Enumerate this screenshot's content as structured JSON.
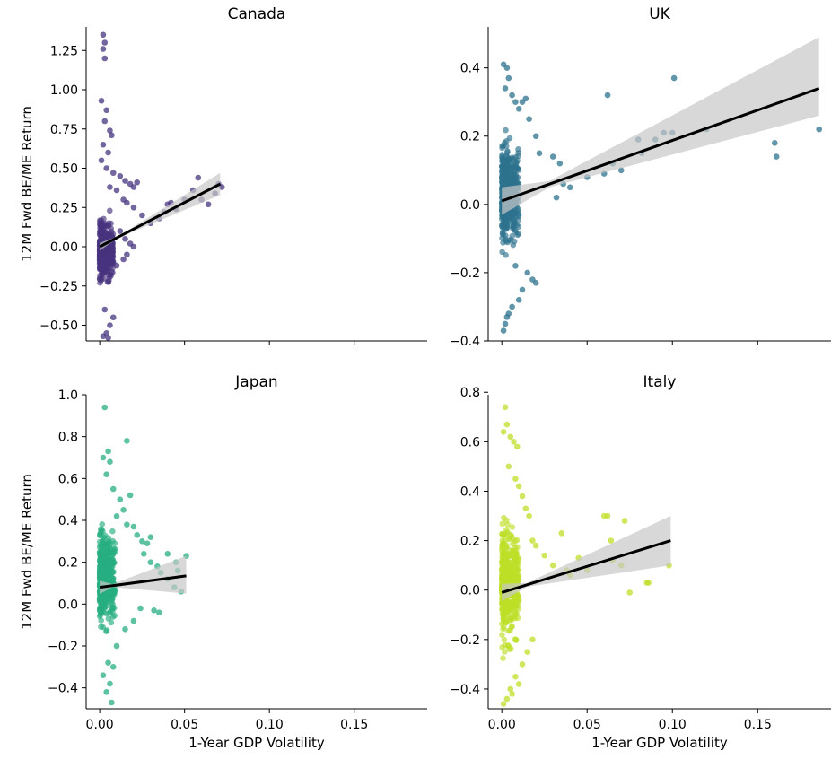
{
  "chart_data": [
    {
      "type": "scatter",
      "title": "Canada",
      "xlabel": "",
      "ylabel": "12M Fwd BE/ME Return",
      "xlim": [
        -0.008,
        0.193
      ],
      "ylim": [
        -0.6,
        1.4
      ],
      "xticks": [
        0.0,
        0.05,
        0.1,
        0.15
      ],
      "xtick_labels": [
        "",
        "",
        "",
        ""
      ],
      "yticks": [
        -0.5,
        -0.25,
        0.0,
        0.25,
        0.5,
        0.75,
        1.0,
        1.25
      ],
      "ytick_labels": [
        "−0.50",
        "−0.25",
        "0.00",
        "0.25",
        "0.50",
        "0.75",
        "1.00",
        "1.25"
      ],
      "point_color": "#46337e",
      "regression": {
        "x0": 0.0,
        "x1": 0.071,
        "y0": 0.0,
        "y1": 0.4,
        "band_end_lo": 0.33,
        "band_end_hi": 0.47
      },
      "cluster": {
        "count": 400,
        "x_max": 0.008,
        "y_center": -0.02,
        "y_spread": 0.17
      },
      "points": [
        [
          0.002,
          1.35
        ],
        [
          0.003,
          1.3
        ],
        [
          0.002,
          1.26
        ],
        [
          0.003,
          1.2
        ],
        [
          0.001,
          0.93
        ],
        [
          0.004,
          0.87
        ],
        [
          0.003,
          0.8
        ],
        [
          0.006,
          0.74
        ],
        [
          0.007,
          0.71
        ],
        [
          0.002,
          0.65
        ],
        [
          0.005,
          0.6
        ],
        [
          0.001,
          0.55
        ],
        [
          0.004,
          0.5
        ],
        [
          0.008,
          0.47
        ],
        [
          0.012,
          0.45
        ],
        [
          0.015,
          0.42
        ],
        [
          0.006,
          0.38
        ],
        [
          0.01,
          0.36
        ],
        [
          0.018,
          0.4
        ],
        [
          0.02,
          0.38
        ],
        [
          0.022,
          0.41
        ],
        [
          0.014,
          0.3
        ],
        [
          0.016,
          0.28
        ],
        [
          0.02,
          0.25
        ],
        [
          0.025,
          0.2
        ],
        [
          0.03,
          0.15
        ],
        [
          0.035,
          0.18
        ],
        [
          0.038,
          0.22
        ],
        [
          0.04,
          0.27
        ],
        [
          0.042,
          0.28
        ],
        [
          0.045,
          0.24
        ],
        [
          0.05,
          0.3
        ],
        [
          0.055,
          0.36
        ],
        [
          0.058,
          0.44
        ],
        [
          0.06,
          0.3
        ],
        [
          0.064,
          0.27
        ],
        [
          0.07,
          0.4
        ],
        [
          0.072,
          0.38
        ],
        [
          0.068,
          0.34
        ],
        [
          0.012,
          0.1
        ],
        [
          0.015,
          0.05
        ],
        [
          0.018,
          0.02
        ],
        [
          0.02,
          0.0
        ],
        [
          0.016,
          -0.05
        ],
        [
          0.014,
          -0.08
        ],
        [
          0.01,
          -0.12
        ],
        [
          0.006,
          -0.5
        ],
        [
          0.004,
          -0.55
        ],
        [
          0.002,
          -0.57
        ],
        [
          0.005,
          -0.58
        ],
        [
          0.008,
          -0.45
        ],
        [
          0.003,
          -0.4
        ]
      ]
    },
    {
      "type": "scatter",
      "title": "UK",
      "xlabel": "",
      "ylabel": "",
      "xlim": [
        -0.008,
        0.193
      ],
      "ylim": [
        -0.4,
        0.52
      ],
      "xticks": [
        0.0,
        0.05,
        0.1,
        0.15
      ],
      "xtick_labels": [
        "",
        "",
        "",
        ""
      ],
      "yticks": [
        -0.4,
        -0.2,
        0.0,
        0.2,
        0.4
      ],
      "ytick_labels": [
        "−0.4",
        "−0.2",
        "0.0",
        "0.2",
        "0.4"
      ],
      "point_color": "#2c728e",
      "regression": {
        "x0": 0.0,
        "x1": 0.186,
        "y0": 0.01,
        "y1": 0.34,
        "band_end_lo": 0.26,
        "band_end_hi": 0.49
      },
      "cluster": {
        "count": 380,
        "x_max": 0.01,
        "y_center": 0.03,
        "y_spread": 0.13
      },
      "points": [
        [
          0.001,
          0.41
        ],
        [
          0.003,
          0.4
        ],
        [
          0.004,
          0.37
        ],
        [
          0.002,
          0.34
        ],
        [
          0.006,
          0.32
        ],
        [
          0.008,
          0.3
        ],
        [
          0.01,
          0.28
        ],
        [
          0.012,
          0.3
        ],
        [
          0.014,
          0.31
        ],
        [
          0.016,
          0.25
        ],
        [
          0.02,
          0.2
        ],
        [
          0.022,
          0.15
        ],
        [
          0.03,
          0.14
        ],
        [
          0.034,
          0.12
        ],
        [
          0.036,
          0.06
        ],
        [
          0.04,
          0.05
        ],
        [
          0.032,
          0.02
        ],
        [
          0.05,
          0.08
        ],
        [
          0.06,
          0.09
        ],
        [
          0.062,
          0.32
        ],
        [
          0.065,
          0.12
        ],
        [
          0.07,
          0.1
        ],
        [
          0.08,
          0.19
        ],
        [
          0.082,
          0.15
        ],
        [
          0.09,
          0.19
        ],
        [
          0.095,
          0.21
        ],
        [
          0.1,
          0.21
        ],
        [
          0.101,
          0.37
        ],
        [
          0.12,
          0.22
        ],
        [
          0.16,
          0.18
        ],
        [
          0.161,
          0.14
        ],
        [
          0.186,
          0.22
        ],
        [
          0.015,
          -0.2
        ],
        [
          0.018,
          -0.22
        ],
        [
          0.02,
          -0.23
        ],
        [
          0.012,
          -0.25
        ],
        [
          0.01,
          -0.28
        ],
        [
          0.006,
          -0.3
        ],
        [
          0.004,
          -0.32
        ],
        [
          0.002,
          -0.35
        ],
        [
          0.001,
          -0.37
        ],
        [
          0.003,
          -0.33
        ],
        [
          0.008,
          -0.18
        ]
      ]
    },
    {
      "type": "scatter",
      "title": "Japan",
      "xlabel": "1-Year GDP Volatility",
      "ylabel": "12M Fwd BE/ME Return",
      "xlim": [
        -0.008,
        0.193
      ],
      "ylim": [
        -0.5,
        1.0
      ],
      "xticks": [
        0.0,
        0.05,
        0.1,
        0.15
      ],
      "xtick_labels": [
        "0.00",
        "0.05",
        "0.10",
        "0.15"
      ],
      "yticks": [
        -0.4,
        -0.2,
        0.0,
        0.2,
        0.4,
        0.6,
        0.8,
        1.0
      ],
      "ytick_labels": [
        "−0.4",
        "−0.2",
        "0.0",
        "0.2",
        "0.4",
        "0.6",
        "0.8",
        "1.0"
      ],
      "point_color": "#27ad81",
      "regression": {
        "x0": 0.0,
        "x1": 0.051,
        "y0": 0.08,
        "y1": 0.135,
        "band_end_lo": 0.05,
        "band_end_hi": 0.23
      },
      "cluster": {
        "count": 420,
        "x_max": 0.009,
        "y_center": 0.12,
        "y_spread": 0.2
      },
      "points": [
        [
          0.003,
          0.94
        ],
        [
          0.016,
          0.78
        ],
        [
          0.005,
          0.73
        ],
        [
          0.002,
          0.7
        ],
        [
          0.006,
          0.68
        ],
        [
          0.004,
          0.62
        ],
        [
          0.008,
          0.55
        ],
        [
          0.018,
          0.52
        ],
        [
          0.012,
          0.5
        ],
        [
          0.014,
          0.45
        ],
        [
          0.01,
          0.42
        ],
        [
          0.016,
          0.38
        ],
        [
          0.02,
          0.37
        ],
        [
          0.022,
          0.33
        ],
        [
          0.025,
          0.3
        ],
        [
          0.028,
          0.29
        ],
        [
          0.03,
          0.32
        ],
        [
          0.026,
          0.24
        ],
        [
          0.03,
          0.2
        ],
        [
          0.034,
          0.18
        ],
        [
          0.036,
          0.15
        ],
        [
          0.04,
          0.24
        ],
        [
          0.04,
          0.12
        ],
        [
          0.044,
          0.08
        ],
        [
          0.046,
          0.16
        ],
        [
          0.048,
          0.06
        ],
        [
          0.051,
          0.23
        ],
        [
          0.045,
          0.2
        ],
        [
          0.035,
          -0.04
        ],
        [
          0.032,
          -0.03
        ],
        [
          0.024,
          -0.02
        ],
        [
          0.02,
          -0.08
        ],
        [
          0.015,
          -0.12
        ],
        [
          0.01,
          -0.2
        ],
        [
          0.008,
          -0.3
        ],
        [
          0.006,
          -0.38
        ],
        [
          0.004,
          -0.42
        ],
        [
          0.007,
          -0.47
        ],
        [
          0.002,
          -0.34
        ],
        [
          0.005,
          -0.28
        ]
      ]
    },
    {
      "type": "scatter",
      "title": "Italy",
      "xlabel": "1-Year GDP Volatility",
      "ylabel": "",
      "xlim": [
        -0.008,
        0.193
      ],
      "ylim": [
        -0.48,
        0.79
      ],
      "xticks": [
        0.0,
        0.05,
        0.1,
        0.15
      ],
      "xtick_labels": [
        "0.00",
        "0.05",
        "0.10",
        "0.15"
      ],
      "yticks": [
        -0.4,
        -0.2,
        0.0,
        0.2,
        0.4,
        0.6,
        0.8
      ],
      "ytick_labels": [
        "−0.4",
        "−0.2",
        "0.0",
        "0.2",
        "0.4",
        "0.6",
        "0.8"
      ],
      "point_color": "#bddf26",
      "regression": {
        "x0": 0.0,
        "x1": 0.099,
        "y0": -0.01,
        "y1": 0.2,
        "band_end_lo": 0.1,
        "band_end_hi": 0.3
      },
      "cluster": {
        "count": 420,
        "x_max": 0.01,
        "y_center": 0.02,
        "y_spread": 0.2
      },
      "points": [
        [
          0.002,
          0.74
        ],
        [
          0.003,
          0.67
        ],
        [
          0.001,
          0.64
        ],
        [
          0.005,
          0.62
        ],
        [
          0.007,
          0.6
        ],
        [
          0.009,
          0.58
        ],
        [
          0.004,
          0.5
        ],
        [
          0.008,
          0.45
        ],
        [
          0.01,
          0.42
        ],
        [
          0.012,
          0.38
        ],
        [
          0.014,
          0.33
        ],
        [
          0.016,
          0.3
        ],
        [
          0.018,
          0.2
        ],
        [
          0.02,
          0.18
        ],
        [
          0.025,
          0.14
        ],
        [
          0.03,
          0.1
        ],
        [
          0.035,
          0.23
        ],
        [
          0.038,
          0.08
        ],
        [
          0.04,
          0.06
        ],
        [
          0.045,
          0.13
        ],
        [
          0.05,
          0.08
        ],
        [
          0.06,
          0.3
        ],
        [
          0.062,
          0.3
        ],
        [
          0.064,
          0.2
        ],
        [
          0.065,
          0.12
        ],
        [
          0.07,
          0.1
        ],
        [
          0.072,
          0.28
        ],
        [
          0.075,
          -0.01
        ],
        [
          0.085,
          0.03
        ],
        [
          0.086,
          0.03
        ],
        [
          0.098,
          0.1
        ],
        [
          0.018,
          -0.2
        ],
        [
          0.015,
          -0.25
        ],
        [
          0.012,
          -0.3
        ],
        [
          0.008,
          -0.35
        ],
        [
          0.005,
          -0.4
        ],
        [
          0.003,
          -0.44
        ],
        [
          0.001,
          -0.46
        ],
        [
          0.006,
          -0.42
        ],
        [
          0.01,
          -0.38
        ]
      ]
    }
  ]
}
